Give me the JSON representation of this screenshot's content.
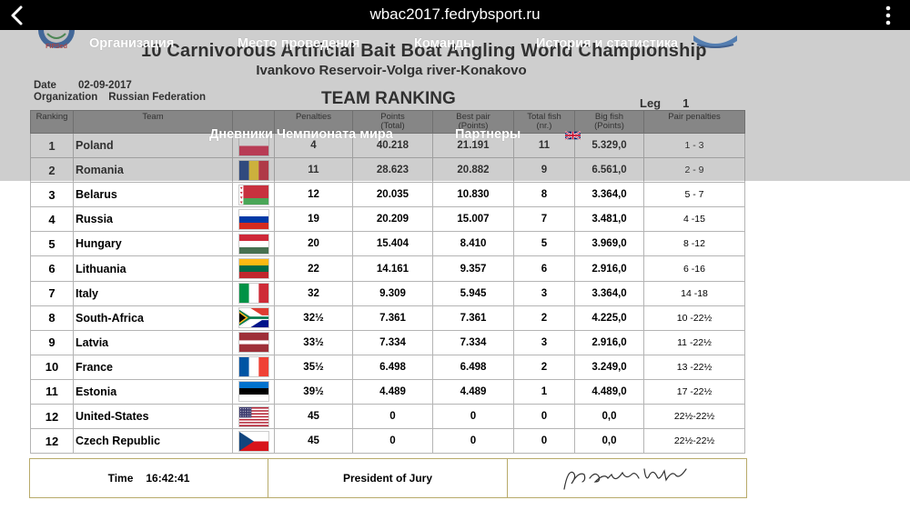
{
  "browser": {
    "url": "wbac2017.fedrybsport.ru",
    "back_icon": "chevron-left-icon",
    "more_icon": "more-vertical-icon"
  },
  "document": {
    "title": "10 Carnivorous Artificial Bait Boat Angling World Championship",
    "subtitle": "Ivankovo Reservoir-Volga river-Konakovo",
    "date_label": "Date",
    "date_value": "02-09-2017",
    "org_label": "Organization",
    "org_value": "Russian Federation",
    "ranking_title": "TEAM RANKING",
    "leg_label": "Leg",
    "leg_value": "1",
    "logo_text": "FIPSed"
  },
  "table": {
    "headers": {
      "ranking": "Ranking",
      "team": "Team",
      "penalties": "Penalties",
      "points_1": "Points",
      "points_2": "(Total)",
      "bestpair_1": "Best pair",
      "bestpair_2": "(Points)",
      "totalfish_1": "Total fish",
      "totalfish_2": "(nr.)",
      "bigfish_1": "Big fish",
      "bigfish_2": "(Points)",
      "pairpen": "Pair penalties"
    },
    "rows": [
      {
        "rank": "1",
        "team": "Poland",
        "flag": "poland",
        "penalties": "4",
        "points": "40.218",
        "best_pair": "21.191",
        "total_fish": "11",
        "big_fish": "5.329,0",
        "pair_penalties": "1 - 3"
      },
      {
        "rank": "2",
        "team": "Romania",
        "flag": "romania",
        "penalties": "11",
        "points": "28.623",
        "best_pair": "20.882",
        "total_fish": "9",
        "big_fish": "6.561,0",
        "pair_penalties": "2 - 9"
      },
      {
        "rank": "3",
        "team": "Belarus",
        "flag": "belarus",
        "penalties": "12",
        "points": "20.035",
        "best_pair": "10.830",
        "total_fish": "8",
        "big_fish": "3.364,0",
        "pair_penalties": "5 - 7"
      },
      {
        "rank": "4",
        "team": "Russia",
        "flag": "russia",
        "penalties": "19",
        "points": "20.209",
        "best_pair": "15.007",
        "total_fish": "7",
        "big_fish": "3.481,0",
        "pair_penalties": "4 -15"
      },
      {
        "rank": "5",
        "team": "Hungary",
        "flag": "hungary",
        "penalties": "20",
        "points": "15.404",
        "best_pair": "8.410",
        "total_fish": "5",
        "big_fish": "3.969,0",
        "pair_penalties": "8 -12"
      },
      {
        "rank": "6",
        "team": "Lithuania",
        "flag": "lithuania",
        "penalties": "22",
        "points": "14.161",
        "best_pair": "9.357",
        "total_fish": "6",
        "big_fish": "2.916,0",
        "pair_penalties": "6 -16"
      },
      {
        "rank": "7",
        "team": "Italy",
        "flag": "italy",
        "penalties": "32",
        "points": "9.309",
        "best_pair": "5.945",
        "total_fish": "3",
        "big_fish": "3.364,0",
        "pair_penalties": "14 -18"
      },
      {
        "rank": "8",
        "team": "South-Africa",
        "flag": "south-africa",
        "penalties": "32½",
        "points": "7.361",
        "best_pair": "7.361",
        "total_fish": "2",
        "big_fish": "4.225,0",
        "pair_penalties": "10 -22½"
      },
      {
        "rank": "9",
        "team": "Latvia",
        "flag": "latvia",
        "penalties": "33½",
        "points": "7.334",
        "best_pair": "7.334",
        "total_fish": "3",
        "big_fish": "2.916,0",
        "pair_penalties": "11 -22½"
      },
      {
        "rank": "10",
        "team": "France",
        "flag": "france",
        "penalties": "35½",
        "points": "6.498",
        "best_pair": "6.498",
        "total_fish": "2",
        "big_fish": "3.249,0",
        "pair_penalties": "13 -22½"
      },
      {
        "rank": "11",
        "team": "Estonia",
        "flag": "estonia",
        "penalties": "39½",
        "points": "4.489",
        "best_pair": "4.489",
        "total_fish": "1",
        "big_fish": "4.489,0",
        "pair_penalties": "17 -22½"
      },
      {
        "rank": "12",
        "team": "United-States",
        "flag": "usa",
        "penalties": "45",
        "points": "0",
        "best_pair": "0",
        "total_fish": "0",
        "big_fish": "0,0",
        "pair_penalties": "22½-22½"
      },
      {
        "rank": "12",
        "team": "Czech Republic",
        "flag": "czech",
        "penalties": "45",
        "points": "0",
        "best_pair": "0",
        "total_fish": "0",
        "big_fish": "0,0",
        "pair_penalties": "22½-22½"
      }
    ]
  },
  "footer": {
    "time_label": "Time",
    "time_value": "16:42:41",
    "president_label": "President of Jury"
  },
  "nav": {
    "items": [
      "Организация",
      "Место проведения",
      "Команды",
      "История и статистика",
      "Дневники Чемпионата мира",
      "Партнеры"
    ],
    "language_icon": "uk-flag-icon"
  }
}
